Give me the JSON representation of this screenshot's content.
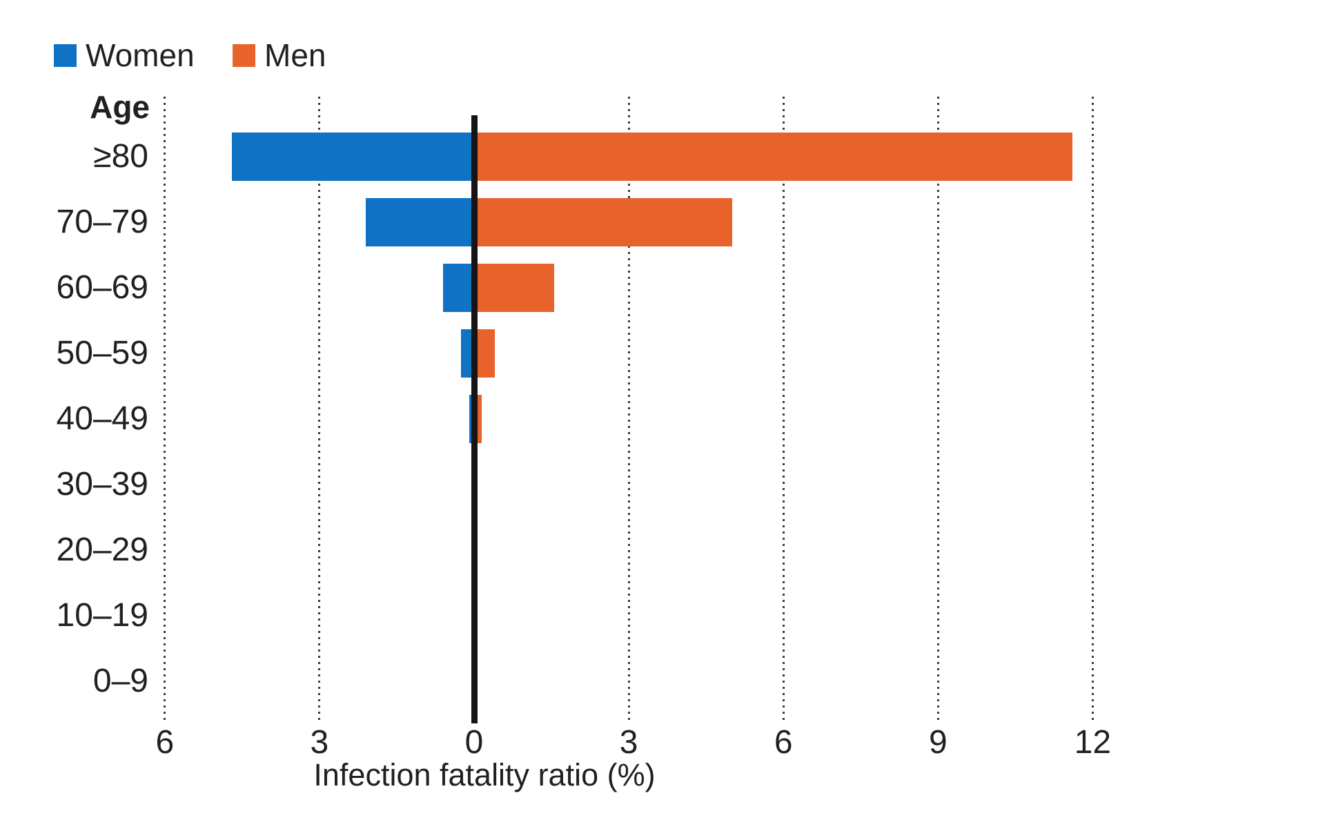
{
  "legend": {
    "items": [
      {
        "label": "Women",
        "color": "#1072C4"
      },
      {
        "label": "Men",
        "color": "#E8622B"
      }
    ]
  },
  "chart_data": {
    "type": "bar",
    "orientation": "horizontal-diverging",
    "title": "",
    "y_header": "Age",
    "categories": [
      "≥80",
      "70–79",
      "60–69",
      "50–59",
      "40–49",
      "30–39",
      "20–29",
      "10–19",
      "0–9"
    ],
    "series": [
      {
        "name": "Women",
        "color": "#1072C4",
        "direction": "left",
        "values": [
          4.7,
          2.1,
          0.6,
          0.25,
          0.1,
          0.03,
          0.01,
          0,
          0
        ]
      },
      {
        "name": "Men",
        "color": "#E8622B",
        "direction": "right",
        "values": [
          11.6,
          5.0,
          1.55,
          0.4,
          0.15,
          0.05,
          0.01,
          0,
          0
        ]
      }
    ],
    "xlabel": "Infection fatality ratio (%)",
    "x_ticks": [
      {
        "value": -6,
        "label": "6"
      },
      {
        "value": -3,
        "label": "3"
      },
      {
        "value": 0,
        "label": "0"
      },
      {
        "value": 3,
        "label": "3"
      },
      {
        "value": 6,
        "label": "6"
      },
      {
        "value": 9,
        "label": "9"
      },
      {
        "value": 12,
        "label": "12"
      }
    ],
    "xlim": [
      -6,
      12.5
    ],
    "grid": "dotted-vertical",
    "legend_position": "top-left",
    "axis_colors": {
      "zero_line": "#151515",
      "gridline": "#3b3b3b",
      "text": "#231f20"
    }
  }
}
